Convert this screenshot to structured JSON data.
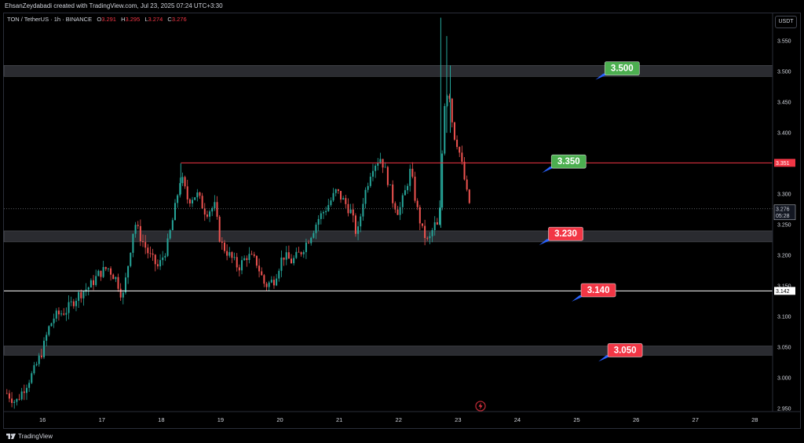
{
  "header": {
    "attribution": "EhsanZeydabadi created with TradingView.com, Jul 23, 2025 07:24 UTC+3:30"
  },
  "legend": {
    "symbol": "TON / TetherUS · 1h · BINANCE",
    "o_label": "O",
    "o_value": "3.291",
    "h_label": "H",
    "h_value": "3.295",
    "l_label": "L",
    "l_value": "3.274",
    "c_label": "C",
    "c_value": "3.276"
  },
  "currency_button": "USDT",
  "footer": {
    "brand": "TradingView"
  },
  "colors": {
    "up": "#26a69a",
    "down": "#ef5350",
    "zone": "#5d606b",
    "resistance_line": "#f23645",
    "support_line": "#ffffff",
    "green_label": "#4caf50",
    "red_label": "#f23645"
  },
  "chart_data": {
    "type": "candlestick",
    "timeframe": "1h",
    "x_ticks": [
      "16",
      "17",
      "18",
      "19",
      "20",
      "21",
      "22",
      "23",
      "24",
      "25",
      "26",
      "27",
      "28"
    ],
    "y_ticks": [
      "2.950",
      "3.000",
      "3.050",
      "3.100",
      "3.150",
      "3.200",
      "3.250",
      "3.300",
      "3.350",
      "3.400",
      "3.450",
      "3.500",
      "3.550"
    ],
    "ylim": [
      2.945,
      3.595
    ],
    "xlim_days": [
      15.35,
      28.3
    ],
    "price_tags": [
      {
        "value": 3.351,
        "text": "3.351",
        "style": "resistance"
      },
      {
        "value": 3.276,
        "text": "3.276",
        "sub": "05:28",
        "style": "last"
      },
      {
        "value": 3.142,
        "text": "3.142",
        "style": "support"
      }
    ],
    "zones": [
      {
        "low": 3.492,
        "high": 3.51
      },
      {
        "low": 3.222,
        "high": 3.24
      },
      {
        "low": 3.037,
        "high": 3.052
      }
    ],
    "horizontal_lines": [
      {
        "value": 3.351,
        "from_day": 18.33,
        "style": "resistance"
      },
      {
        "value": 3.142,
        "from_day": 15.35,
        "style": "support"
      },
      {
        "value": 3.276,
        "from_day": 15.35,
        "style": "last"
      }
    ],
    "annotations": [
      {
        "text": "3.500",
        "color": "green",
        "day": 25.5,
        "price": 3.516
      },
      {
        "text": "3.350",
        "color": "green",
        "day": 24.6,
        "price": 3.364
      },
      {
        "text": "3.230",
        "color": "red",
        "day": 24.55,
        "price": 3.246
      },
      {
        "text": "3.140",
        "color": "red",
        "day": 25.1,
        "price": 3.154
      },
      {
        "text": "3.050",
        "color": "red",
        "day": 25.55,
        "price": 3.056
      }
    ],
    "close_path": [
      [
        15.4,
        2.975
      ],
      [
        15.55,
        2.96
      ],
      [
        15.7,
        2.985
      ],
      [
        15.85,
        3.01
      ],
      [
        16.0,
        3.045
      ],
      [
        16.1,
        3.08
      ],
      [
        16.2,
        3.1
      ],
      [
        16.4,
        3.11
      ],
      [
        16.6,
        3.135
      ],
      [
        16.8,
        3.15
      ],
      [
        16.95,
        3.17
      ],
      [
        17.1,
        3.18
      ],
      [
        17.25,
        3.16
      ],
      [
        17.35,
        3.13
      ],
      [
        17.45,
        3.19
      ],
      [
        17.55,
        3.255
      ],
      [
        17.65,
        3.23
      ],
      [
        17.8,
        3.2
      ],
      [
        17.95,
        3.18
      ],
      [
        18.1,
        3.215
      ],
      [
        18.22,
        3.27
      ],
      [
        18.33,
        3.33
      ],
      [
        18.45,
        3.29
      ],
      [
        18.6,
        3.3
      ],
      [
        18.75,
        3.27
      ],
      [
        18.9,
        3.28
      ],
      [
        19.0,
        3.22
      ],
      [
        19.15,
        3.2
      ],
      [
        19.3,
        3.18
      ],
      [
        19.45,
        3.2
      ],
      [
        19.6,
        3.19
      ],
      [
        19.75,
        3.15
      ],
      [
        19.9,
        3.16
      ],
      [
        20.05,
        3.2
      ],
      [
        20.2,
        3.19
      ],
      [
        20.35,
        3.205
      ],
      [
        20.5,
        3.23
      ],
      [
        20.65,
        3.26
      ],
      [
        20.8,
        3.28
      ],
      [
        20.95,
        3.305
      ],
      [
        21.1,
        3.285
      ],
      [
        21.2,
        3.27
      ],
      [
        21.3,
        3.23
      ],
      [
        21.4,
        3.29
      ],
      [
        21.55,
        3.345
      ],
      [
        21.7,
        3.36
      ],
      [
        21.8,
        3.33
      ],
      [
        21.9,
        3.29
      ],
      [
        22.0,
        3.27
      ],
      [
        22.1,
        3.3
      ],
      [
        22.2,
        3.34
      ],
      [
        22.3,
        3.28
      ],
      [
        22.4,
        3.24
      ],
      [
        22.5,
        3.22
      ],
      [
        22.6,
        3.25
      ],
      [
        22.68,
        3.245
      ],
      [
        22.72,
        3.34
      ],
      [
        22.78,
        3.46
      ],
      [
        22.85,
        3.47
      ],
      [
        22.92,
        3.4
      ],
      [
        23.0,
        3.38
      ],
      [
        23.08,
        3.34
      ],
      [
        23.15,
        3.3
      ],
      [
        23.22,
        3.276
      ]
    ],
    "spikes": [
      {
        "day": 22.71,
        "high": 3.588,
        "low": 3.245
      },
      {
        "day": 22.81,
        "high": 3.558,
        "low": 3.4
      },
      {
        "day": 22.87,
        "high": 3.51,
        "low": 3.4
      },
      {
        "day": 18.33,
        "high": 3.35,
        "low": 3.3
      }
    ]
  }
}
